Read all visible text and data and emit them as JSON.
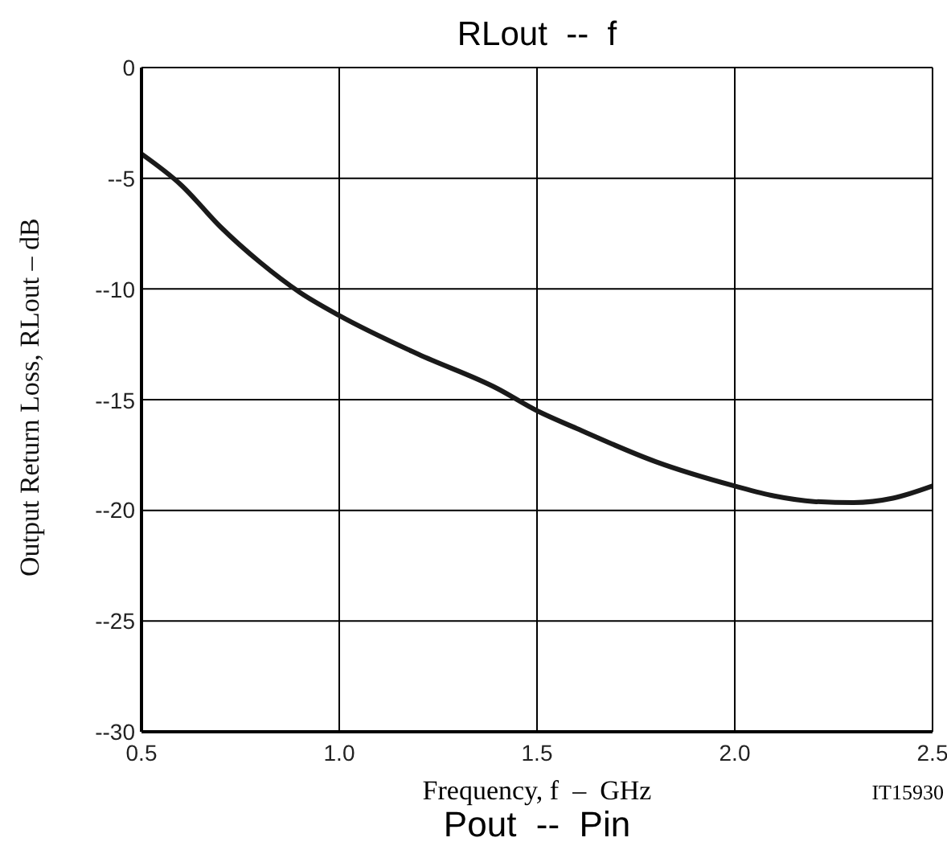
{
  "chart_data": {
    "type": "line",
    "title": "RLout  --  f",
    "xlabel": "Frequency, f  –  GHz",
    "ylabel": "Output Return Loss, RLout  –  dB",
    "annotations": [
      "IT15930",
      "Pout  --  Pin"
    ],
    "x": [
      0.5,
      0.6,
      0.7,
      0.8,
      0.9,
      1.0,
      1.2,
      1.4,
      1.5,
      1.6,
      1.8,
      2.0,
      2.1,
      2.2,
      2.3,
      2.4,
      2.5
    ],
    "series": [
      {
        "color": "#1a1a1a",
        "values": [
          -3.9,
          -5.3,
          -7.2,
          -8.8,
          -10.15,
          -11.2,
          -12.95,
          -14.5,
          -15.5,
          -16.3,
          -17.8,
          -18.9,
          -19.35,
          -19.6,
          -19.65,
          -19.45,
          -18.9
        ]
      }
    ],
    "xlim": [
      0.5,
      2.5
    ],
    "xticks": [
      {
        "value": 0.5,
        "label": "0.5"
      },
      {
        "value": 1.0,
        "label": "1.0"
      },
      {
        "value": 1.5,
        "label": "1.5"
      },
      {
        "value": 2.0,
        "label": "2.0"
      },
      {
        "value": 2.5,
        "label": "2.5"
      }
    ],
    "ylim": [
      -30,
      0
    ],
    "yticks": [
      {
        "value": -30,
        "label": "--30"
      },
      {
        "value": -25,
        "label": "--25"
      },
      {
        "value": -20,
        "label": "--20"
      },
      {
        "value": -15,
        "label": "--15"
      },
      {
        "value": -10,
        "label": "--10"
      },
      {
        "value": -5,
        "label": "--5"
      },
      0
    ],
    "grid": true,
    "marker": "none",
    "line_style": "solid"
  }
}
